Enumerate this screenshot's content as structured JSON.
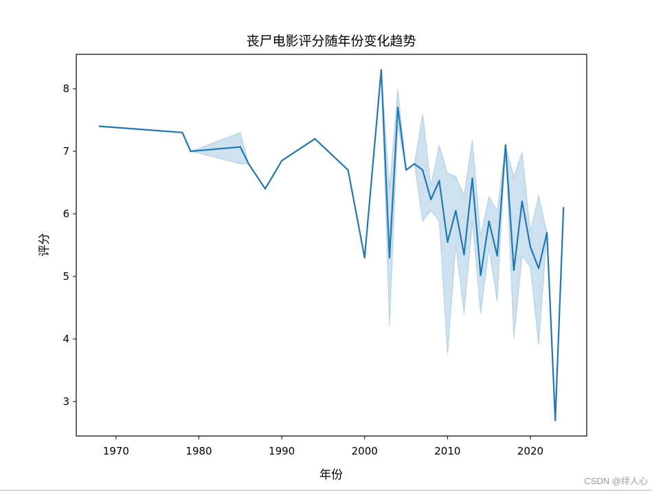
{
  "chart_data": {
    "type": "line",
    "title": "丧尸电影评分随年份变化趋势",
    "xlabel": "年份",
    "ylabel": "评分",
    "xlim": [
      1965.2,
      2026.8
    ],
    "ylim": [
      2.45,
      8.55
    ],
    "xticks": [
      1970,
      1980,
      1990,
      2000,
      2010,
      2020
    ],
    "yticks": [
      3,
      4,
      5,
      6,
      7,
      8
    ],
    "grid": false,
    "legend": "none",
    "colors": {
      "line": "#1f77b4",
      "band": "#1f77b4"
    },
    "series": [
      {
        "x": [
          1968,
          1978,
          1979,
          1985,
          1986,
          1988,
          1990,
          1994,
          1998,
          2000,
          2002,
          2003,
          2004,
          2005,
          2006,
          2007,
          2008,
          2009,
          2010,
          2011,
          2012,
          2013,
          2014,
          2015,
          2016,
          2017,
          2018,
          2019,
          2020,
          2021,
          2022,
          2023,
          2024
        ],
        "y": [
          7.4,
          7.3,
          7.0,
          7.07,
          6.8,
          6.4,
          6.85,
          7.2,
          6.7,
          5.3,
          8.3,
          5.3,
          7.7,
          6.7,
          6.8,
          6.7,
          6.23,
          6.53,
          5.55,
          6.05,
          5.35,
          6.57,
          5.02,
          5.88,
          5.33,
          7.1,
          5.1,
          6.2,
          5.47,
          5.13,
          5.7,
          2.7,
          6.1
        ],
        "ci_low": [
          7.4,
          7.3,
          7.0,
          6.8,
          6.8,
          6.4,
          6.85,
          7.2,
          6.7,
          5.3,
          8.3,
          4.2,
          7.4,
          6.7,
          6.8,
          5.88,
          6.05,
          5.88,
          3.75,
          5.5,
          4.4,
          5.87,
          4.4,
          5.45,
          4.6,
          7.1,
          4.0,
          5.33,
          5.15,
          3.9,
          5.7,
          2.7,
          6.1
        ],
        "ci_high": [
          7.4,
          7.3,
          7.0,
          7.3,
          6.8,
          6.4,
          6.85,
          7.2,
          6.7,
          5.3,
          8.3,
          6.4,
          8.0,
          6.7,
          6.8,
          7.6,
          6.45,
          7.1,
          6.65,
          6.6,
          6.3,
          7.18,
          5.65,
          6.28,
          6.05,
          7.1,
          6.6,
          6.99,
          5.72,
          6.3,
          5.7,
          2.7,
          6.1
        ]
      }
    ]
  },
  "watermark": "CSDN @绊人心"
}
